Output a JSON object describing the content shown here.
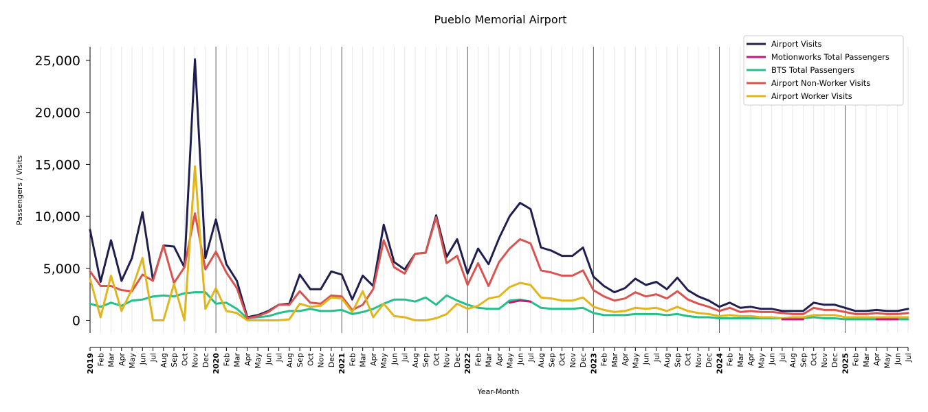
{
  "chart_data": {
    "type": "line",
    "title": "Pueblo Memorial Airport",
    "xlabel": "Year-Month",
    "ylabel": "Passengers / Visits",
    "ylim": [
      -1200,
      26300
    ],
    "yticks": [
      0,
      5000,
      10000,
      15000,
      20000,
      25000
    ],
    "ytick_labels": [
      "0",
      "5,000",
      "10,000",
      "15,000",
      "20,000",
      "25,000"
    ],
    "grid": "vertical monthly gridlines, year separators",
    "legend_position": "top-right",
    "x": [
      "2019",
      "Feb",
      "Mar",
      "Apr",
      "May",
      "Jun",
      "Jul",
      "Aug",
      "Sep",
      "Oct",
      "Nov",
      "Dec",
      "2020",
      "Feb",
      "Mar",
      "Apr",
      "May",
      "Jun",
      "Jul",
      "Aug",
      "Sep",
      "Oct",
      "Nov",
      "Dec",
      "2021",
      "Feb",
      "Mar",
      "Apr",
      "May",
      "Jun",
      "Jul",
      "Aug",
      "Sep",
      "Oct",
      "Nov",
      "Dec",
      "2022",
      "Feb",
      "Mar",
      "Apr",
      "May",
      "Jun",
      "Jul",
      "Aug",
      "Sep",
      "Oct",
      "Nov",
      "Dec",
      "2023",
      "Feb",
      "Mar",
      "Apr",
      "May",
      "Jun",
      "Jul",
      "Aug",
      "Sep",
      "Oct",
      "Nov",
      "Dec",
      "2024",
      "Feb",
      "Mar",
      "Apr",
      "May",
      "Jun",
      "Jul",
      "Aug",
      "Sep",
      "Oct",
      "Nov",
      "Dec",
      "2025",
      "Feb",
      "Mar",
      "Apr",
      "May",
      "Jun",
      "Jul"
    ],
    "series": [
      {
        "name": "Airport Visits",
        "color": "#1f1f4f",
        "values": [
          8700,
          3700,
          7700,
          3800,
          6000,
          10400,
          3900,
          7200,
          7100,
          5100,
          25100,
          6000,
          9700,
          5400,
          3800,
          300,
          500,
          900,
          1500,
          1600,
          4400,
          3000,
          3000,
          4700,
          4400,
          2000,
          4300,
          3300,
          9200,
          5600,
          4900,
          6400,
          6500,
          10100,
          6100,
          7800,
          4500,
          6900,
          5400,
          7900,
          10000,
          11300,
          10700,
          7000,
          6700,
          6200,
          6200,
          7000,
          4200,
          3300,
          2700,
          3100,
          4000,
          3400,
          3700,
          3000,
          4100,
          2900,
          2300,
          1900,
          1300,
          1700,
          1200,
          1300,
          1100,
          1100,
          900,
          900,
          900,
          1700,
          1500,
          1500,
          1200,
          900,
          900,
          1000,
          900,
          900,
          1100
        ]
      },
      {
        "name": "Motionworks Total Passengers",
        "color": "#c2187d",
        "values": [
          null,
          null,
          null,
          null,
          null,
          null,
          null,
          null,
          null,
          null,
          null,
          null,
          null,
          null,
          null,
          null,
          null,
          null,
          null,
          null,
          null,
          null,
          null,
          null,
          null,
          null,
          null,
          null,
          null,
          null,
          null,
          null,
          null,
          null,
          null,
          null,
          null,
          null,
          null,
          null,
          1700,
          1900,
          1800,
          null,
          null,
          null,
          null,
          null,
          null,
          null,
          null,
          null,
          null,
          null,
          null,
          null,
          null,
          null,
          null,
          null,
          null,
          null,
          null,
          null,
          null,
          null,
          100,
          100,
          100,
          null,
          null,
          null,
          null,
          null,
          null,
          100,
          100,
          100,
          null
        ]
      },
      {
        "name": "BTS Total Passengers",
        "color": "#25bf8a",
        "values": [
          1600,
          1300,
          1700,
          1400,
          1900,
          2000,
          2300,
          2400,
          2300,
          2600,
          2700,
          2700,
          1600,
          1700,
          1100,
          200,
          300,
          400,
          700,
          900,
          900,
          1100,
          900,
          900,
          1000,
          600,
          800,
          1100,
          1600,
          2000,
          2000,
          1800,
          2200,
          1500,
          2400,
          1900,
          1500,
          1200,
          1100,
          1100,
          1900,
          2000,
          1800,
          1200,
          1100,
          1100,
          1100,
          1200,
          700,
          500,
          500,
          500,
          600,
          600,
          600,
          500,
          600,
          400,
          300,
          300,
          200,
          200,
          200,
          200,
          200,
          200,
          200,
          200,
          200,
          300,
          200,
          200,
          100,
          100,
          100,
          100,
          100,
          100,
          100
        ]
      },
      {
        "name": "Airport Non-Worker Visits",
        "color": "#d9534f",
        "values": [
          4700,
          3300,
          3300,
          2900,
          2800,
          4400,
          3800,
          7200,
          3600,
          5100,
          10300,
          4900,
          6600,
          4600,
          3100,
          200,
          400,
          800,
          1500,
          1500,
          2800,
          1700,
          1600,
          2400,
          2300,
          1000,
          1500,
          3000,
          7700,
          5100,
          4500,
          6400,
          6500,
          9900,
          5500,
          6200,
          3400,
          5500,
          3300,
          5600,
          6900,
          7800,
          7400,
          4800,
          4600,
          4300,
          4300,
          4800,
          2900,
          2300,
          1900,
          2100,
          2700,
          2300,
          2500,
          2100,
          2800,
          2000,
          1600,
          1300,
          900,
          1200,
          800,
          900,
          800,
          800,
          700,
          600,
          600,
          1200,
          1000,
          1000,
          800,
          600,
          600,
          700,
          600,
          600,
          700
        ]
      },
      {
        "name": "Airport Worker Visits",
        "color": "#e0b61c",
        "values": [
          4000,
          300,
          4300,
          900,
          3000,
          6000,
          0,
          0,
          3500,
          0,
          14800,
          1100,
          3100,
          900,
          700,
          0,
          0,
          0,
          0,
          100,
          1600,
          1300,
          1400,
          2200,
          2100,
          800,
          2800,
          300,
          1600,
          400,
          300,
          0,
          0,
          200,
          600,
          1600,
          1100,
          1400,
          2100,
          2300,
          3200,
          3600,
          3400,
          2200,
          2100,
          1900,
          1900,
          2200,
          1300,
          1000,
          800,
          900,
          1200,
          1100,
          1200,
          900,
          1300,
          900,
          700,
          600,
          400,
          500,
          400,
          400,
          300,
          300,
          200,
          300,
          300,
          500,
          500,
          500,
          300,
          300,
          300,
          300,
          300,
          300,
          300
        ]
      }
    ]
  }
}
